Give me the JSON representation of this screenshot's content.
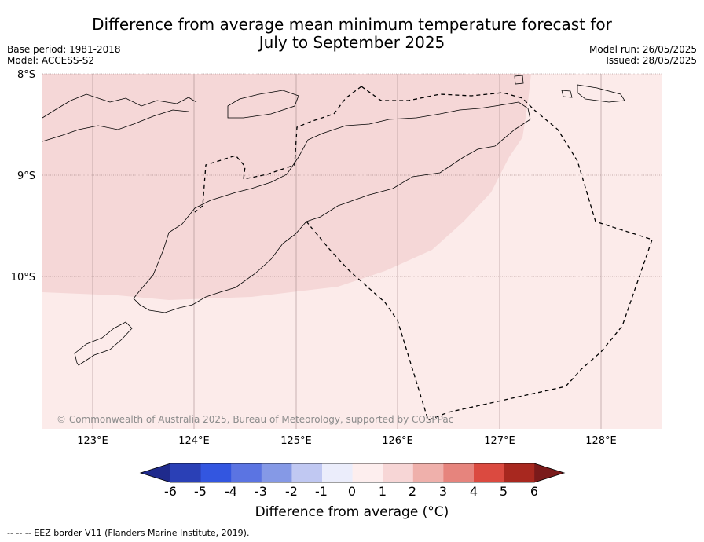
{
  "title_line1": "Difference from average mean minimum temperature forecast for",
  "title_line2": "July to September 2025",
  "base_period": "Base period: 1981-2018",
  "model": "Model: ACCESS-S2",
  "model_run": "Model run: 26/05/2025",
  "issued": "Issued: 28/05/2025",
  "lat_labels": [
    "8°S",
    "9°S",
    "10°S"
  ],
  "lon_labels": [
    "123°E",
    "124°E",
    "125°E",
    "126°E",
    "127°E",
    "128°E"
  ],
  "copyright": "© Commonwealth of Australia 2025, Bureau of Meteorology, supported by COSPPac",
  "colorbar": {
    "ticks": [
      "-6",
      "-5",
      "-4",
      "-3",
      "-2",
      "-1",
      "0",
      "1",
      "2",
      "3",
      "4",
      "5",
      "6"
    ],
    "colors": [
      "#1f2a8c",
      "#2a40b6",
      "#3356e0",
      "#5b74e2",
      "#8599e6",
      "#c0c8f2",
      "#ebedfb",
      "#fdeeee",
      "#f7d6d6",
      "#efb0ab",
      "#e6847d",
      "#db4a40",
      "#a8281f",
      "#7a1a1a"
    ],
    "label": "Difference from average (°C)"
  },
  "map_fill": {
    "anomaly_1_to_2": "#f5d7d7",
    "anomaly_0_to_1": "#fcebea"
  },
  "footer": "-- -- -- EEZ border V11 (Flanders Marine Institute, 2019)."
}
